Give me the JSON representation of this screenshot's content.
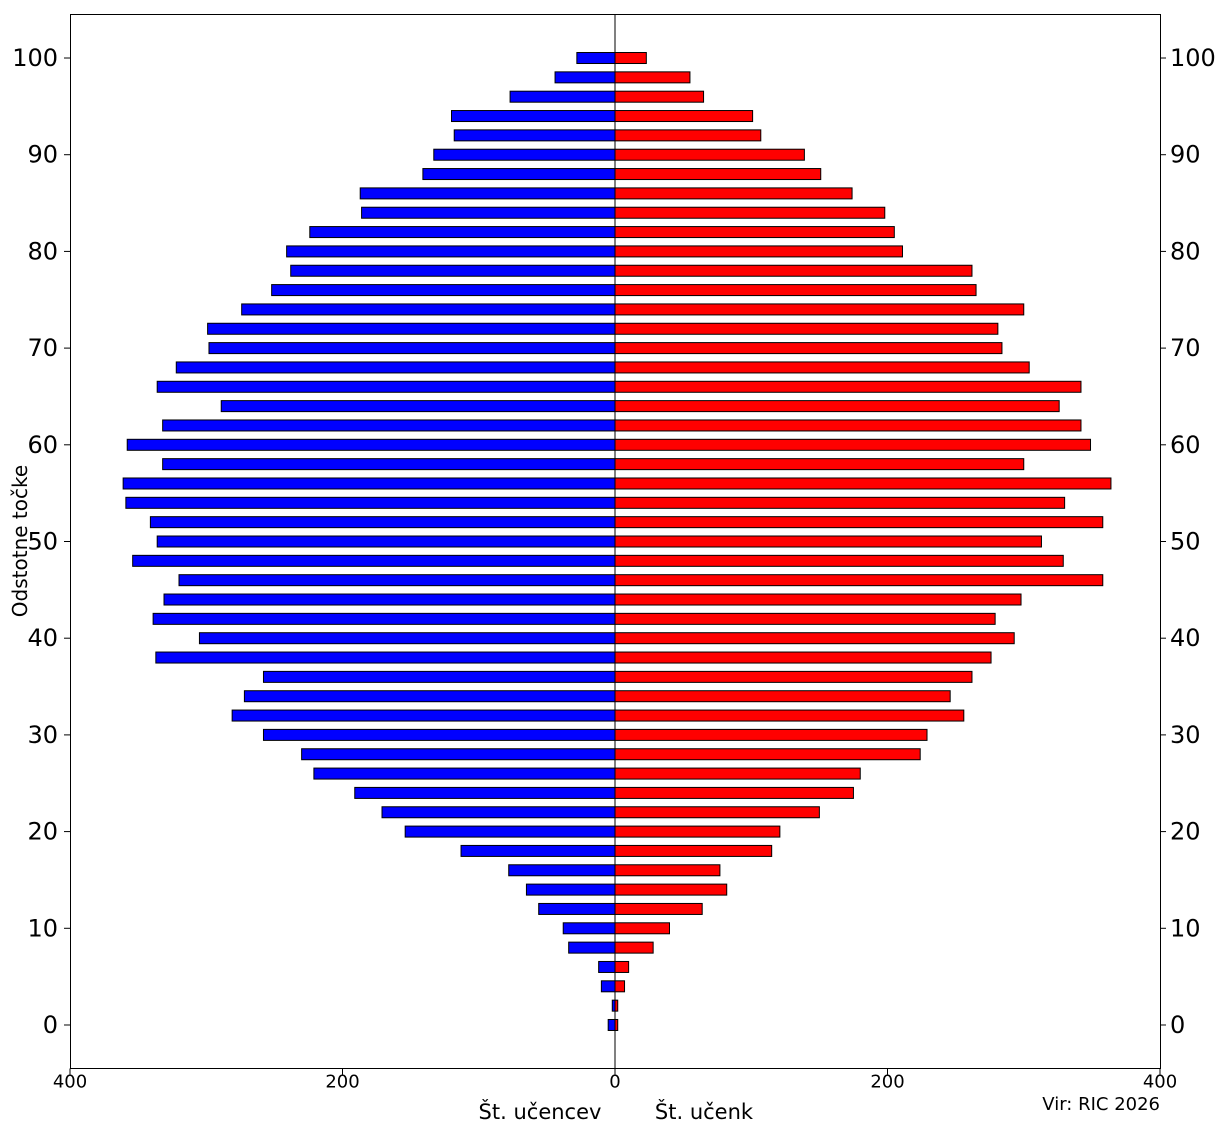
{
  "chart_data": {
    "type": "bar",
    "orientation": "horizontal",
    "layout": "population-pyramid",
    "ylabel": "Odstotne točke",
    "xlabel_left": "Št. učencev",
    "xlabel_right": "Št. učenk",
    "source": "Vir: RIC 2026",
    "y_ticks": [
      0,
      10,
      20,
      30,
      40,
      50,
      60,
      70,
      80,
      90,
      100
    ],
    "x_ticks": [
      400,
      200,
      0,
      200,
      400
    ],
    "xlim": [
      -400,
      400
    ],
    "ylim": [
      -4.5,
      104.5
    ],
    "grid": false,
    "colors": {
      "left": "#0000ff",
      "right": "#ff0000",
      "edge": "#000000"
    },
    "categories": [
      0,
      2,
      4,
      6,
      8,
      10,
      12,
      14,
      16,
      18,
      20,
      22,
      24,
      26,
      28,
      30,
      32,
      34,
      36,
      38,
      40,
      42,
      44,
      46,
      48,
      50,
      52,
      54,
      56,
      58,
      60,
      62,
      64,
      66,
      68,
      70,
      72,
      74,
      76,
      78,
      80,
      82,
      84,
      86,
      88,
      90,
      92,
      94,
      96,
      98,
      100
    ],
    "series": [
      {
        "name": "Št. učencev",
        "side": "left",
        "values": [
          5,
          2,
          10,
          12,
          34,
          38,
          56,
          65,
          78,
          113,
          154,
          171,
          191,
          221,
          230,
          258,
          281,
          272,
          258,
          337,
          305,
          339,
          331,
          320,
          354,
          336,
          341,
          359,
          361,
          332,
          358,
          332,
          289,
          336,
          322,
          298,
          299,
          274,
          252,
          238,
          241,
          224,
          186,
          187,
          141,
          133,
          118,
          120,
          77,
          44,
          28
        ]
      },
      {
        "name": "Št. učenk",
        "side": "right",
        "values": [
          2,
          2,
          7,
          10,
          28,
          40,
          64,
          82,
          77,
          115,
          121,
          150,
          175,
          180,
          224,
          229,
          256,
          246,
          262,
          276,
          293,
          279,
          298,
          358,
          329,
          313,
          358,
          330,
          364,
          300,
          349,
          342,
          326,
          342,
          304,
          284,
          281,
          300,
          265,
          262,
          211,
          205,
          198,
          174,
          151,
          139,
          107,
          101,
          65,
          55,
          23
        ]
      }
    ]
  }
}
